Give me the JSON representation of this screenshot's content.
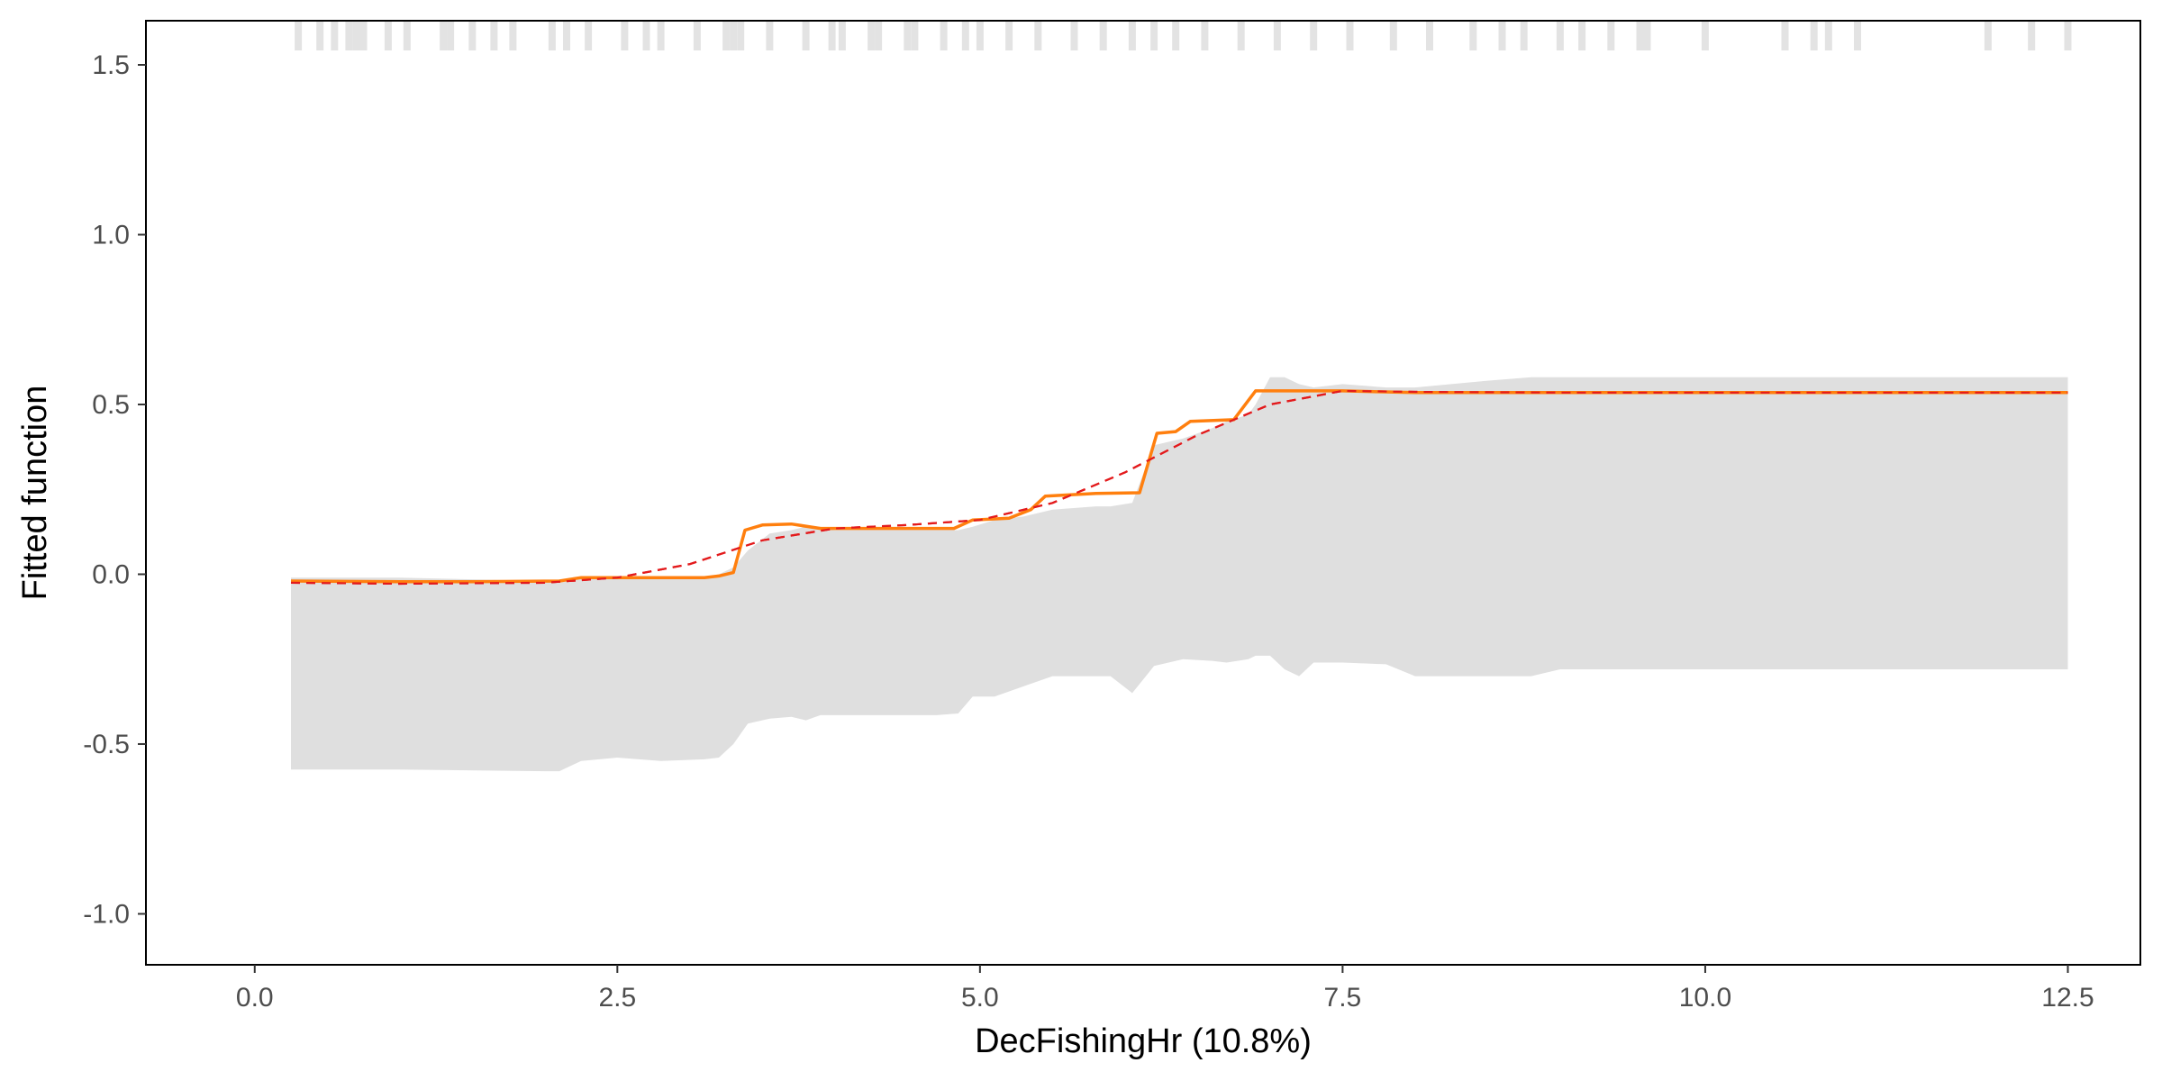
{
  "chart_data": {
    "type": "line",
    "title": "",
    "xlabel": "DecFishingHr  (10.8%)",
    "ylabel": "Fitted function",
    "xlim": [
      -0.75,
      13.0
    ],
    "ylim": [
      -1.15,
      1.63
    ],
    "x_ticks": [
      0.0,
      2.5,
      5.0,
      7.5,
      10.0,
      12.5
    ],
    "x_tick_labels": [
      "0.0",
      "2.5",
      "5.0",
      "7.5",
      "10.0",
      "12.5"
    ],
    "y_ticks": [
      -1.0,
      -0.5,
      0.0,
      0.5,
      1.0,
      1.5
    ],
    "y_tick_labels": [
      "-1.0",
      "-0.5",
      "0.0",
      "0.5",
      "1.0",
      "1.5"
    ],
    "grid": false,
    "legend": "none",
    "colors": {
      "fitted": "#ff7f0e",
      "smooth": "#e31a1c",
      "band": "#dfdfdf",
      "rug": "#e3e3e3",
      "axis": "#000000",
      "tick_text": "#4d4d4d"
    },
    "series": [
      {
        "style": "solid",
        "color": "#ff7f0e",
        "x": [
          0.25,
          1.0,
          1.5,
          2.1,
          2.25,
          2.6,
          3.1,
          3.2,
          3.3,
          3.38,
          3.5,
          3.7,
          3.9,
          4.2,
          4.5,
          4.82,
          4.95,
          5.2,
          5.35,
          5.45,
          5.8,
          6.1,
          6.22,
          6.35,
          6.45,
          6.75,
          6.9,
          7.2,
          7.5,
          8.0,
          9.0,
          12.5
        ],
        "y": [
          -0.02,
          -0.022,
          -0.022,
          -0.02,
          -0.01,
          -0.01,
          -0.01,
          -0.005,
          0.005,
          0.13,
          0.145,
          0.148,
          0.135,
          0.135,
          0.135,
          0.135,
          0.16,
          0.165,
          0.19,
          0.23,
          0.238,
          0.24,
          0.415,
          0.42,
          0.45,
          0.455,
          0.54,
          0.54,
          0.54,
          0.535,
          0.535,
          0.535
        ]
      },
      {
        "style": "dashed",
        "color": "#e31a1c",
        "x": [
          0.25,
          1.0,
          2.0,
          2.5,
          3.0,
          3.5,
          4.0,
          4.5,
          5.0,
          5.5,
          6.0,
          6.5,
          7.0,
          7.5,
          8.0,
          9.0,
          10.0,
          12.5
        ],
        "y": [
          -0.025,
          -0.028,
          -0.025,
          -0.01,
          0.03,
          0.1,
          0.135,
          0.145,
          0.16,
          0.21,
          0.3,
          0.41,
          0.5,
          0.54,
          0.537,
          0.535,
          0.535,
          0.535
        ]
      }
    ],
    "band": {
      "x": [
        0.25,
        1.0,
        2.0,
        2.1,
        2.25,
        2.5,
        2.8,
        3.1,
        3.2,
        3.3,
        3.4,
        3.55,
        3.7,
        3.8,
        3.9,
        4.0,
        4.2,
        4.5,
        4.7,
        4.85,
        4.95,
        5.1,
        5.3,
        5.5,
        5.8,
        5.9,
        6.05,
        6.2,
        6.4,
        6.6,
        6.7,
        6.85,
        6.9,
        7.0,
        7.1,
        7.2,
        7.3,
        7.5,
        7.8,
        8.0,
        8.5,
        8.8,
        9.0,
        10.0,
        12.5
      ],
      "upper": [
        -0.01,
        -0.01,
        -0.02,
        -0.02,
        -0.01,
        -0.01,
        -0.01,
        -0.01,
        0.0,
        0.02,
        0.07,
        0.12,
        0.13,
        0.14,
        0.14,
        0.13,
        0.13,
        0.13,
        0.13,
        0.13,
        0.14,
        0.16,
        0.17,
        0.19,
        0.2,
        0.2,
        0.21,
        0.38,
        0.4,
        0.43,
        0.45,
        0.47,
        0.5,
        0.58,
        0.58,
        0.56,
        0.55,
        0.56,
        0.55,
        0.55,
        0.57,
        0.58,
        0.58,
        0.58,
        0.58
      ],
      "lower": [
        -0.575,
        -0.575,
        -0.58,
        -0.58,
        -0.55,
        -0.54,
        -0.55,
        -0.545,
        -0.54,
        -0.5,
        -0.44,
        -0.425,
        -0.42,
        -0.43,
        -0.415,
        -0.415,
        -0.415,
        -0.415,
        -0.415,
        -0.41,
        -0.36,
        -0.36,
        -0.33,
        -0.3,
        -0.3,
        -0.3,
        -0.35,
        -0.27,
        -0.25,
        -0.255,
        -0.26,
        -0.25,
        -0.24,
        -0.24,
        -0.28,
        -0.3,
        -0.26,
        -0.26,
        -0.265,
        -0.3,
        -0.3,
        -0.3,
        -0.28,
        -0.28,
        -0.28
      ]
    },
    "rug_x": [
      0.3,
      0.45,
      0.92,
      1.35,
      1.5,
      0.55,
      0.75,
      1.05,
      1.65,
      2.05,
      2.3,
      2.55,
      2.8,
      3.05,
      3.25,
      3.3,
      3.55,
      3.8,
      3.98,
      4.05,
      4.25,
      4.3,
      4.5,
      4.55,
      4.75,
      5.0,
      5.2,
      5.4,
      5.65,
      5.85,
      6.05,
      6.35,
      6.55,
      6.8,
      7.05,
      7.3,
      7.55,
      7.85,
      8.1,
      8.4,
      8.75,
      9.0,
      9.35,
      9.55,
      9.6,
      10.0,
      10.55,
      10.75,
      10.85,
      11.05,
      11.95,
      12.25,
      12.5,
      0.65,
      0.7,
      1.3,
      1.78,
      2.15,
      2.7,
      3.35,
      4.9,
      6.2,
      8.6,
      9.15
    ]
  }
}
